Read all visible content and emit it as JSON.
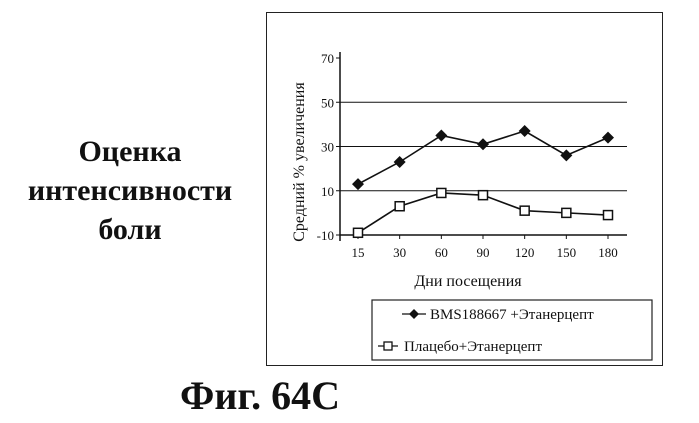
{
  "side_title": [
    "Оценка",
    "интенсивности",
    "боли"
  ],
  "caption": "Фиг. 64C",
  "chart_data": {
    "type": "line",
    "title": "",
    "xlabel": "Дни посещения",
    "ylabel": "Средний % увеличения",
    "categories": [
      "15",
      "30",
      "60",
      "90",
      "120",
      "150",
      "180"
    ],
    "ylim": [
      -10,
      70
    ],
    "yticks": [
      -10,
      10,
      30,
      50,
      70
    ],
    "grid": [
      10,
      30,
      50
    ],
    "series": [
      {
        "name": "BMS188667 +Этанерцепт",
        "marker": "diamond",
        "values": [
          13,
          23,
          35,
          31,
          37,
          26,
          34
        ]
      },
      {
        "name": "Плацебо+Этанерцепт",
        "marker": "square",
        "values": [
          -9,
          3,
          9,
          8,
          1,
          0,
          -1
        ]
      }
    ],
    "legend": "bottom"
  }
}
